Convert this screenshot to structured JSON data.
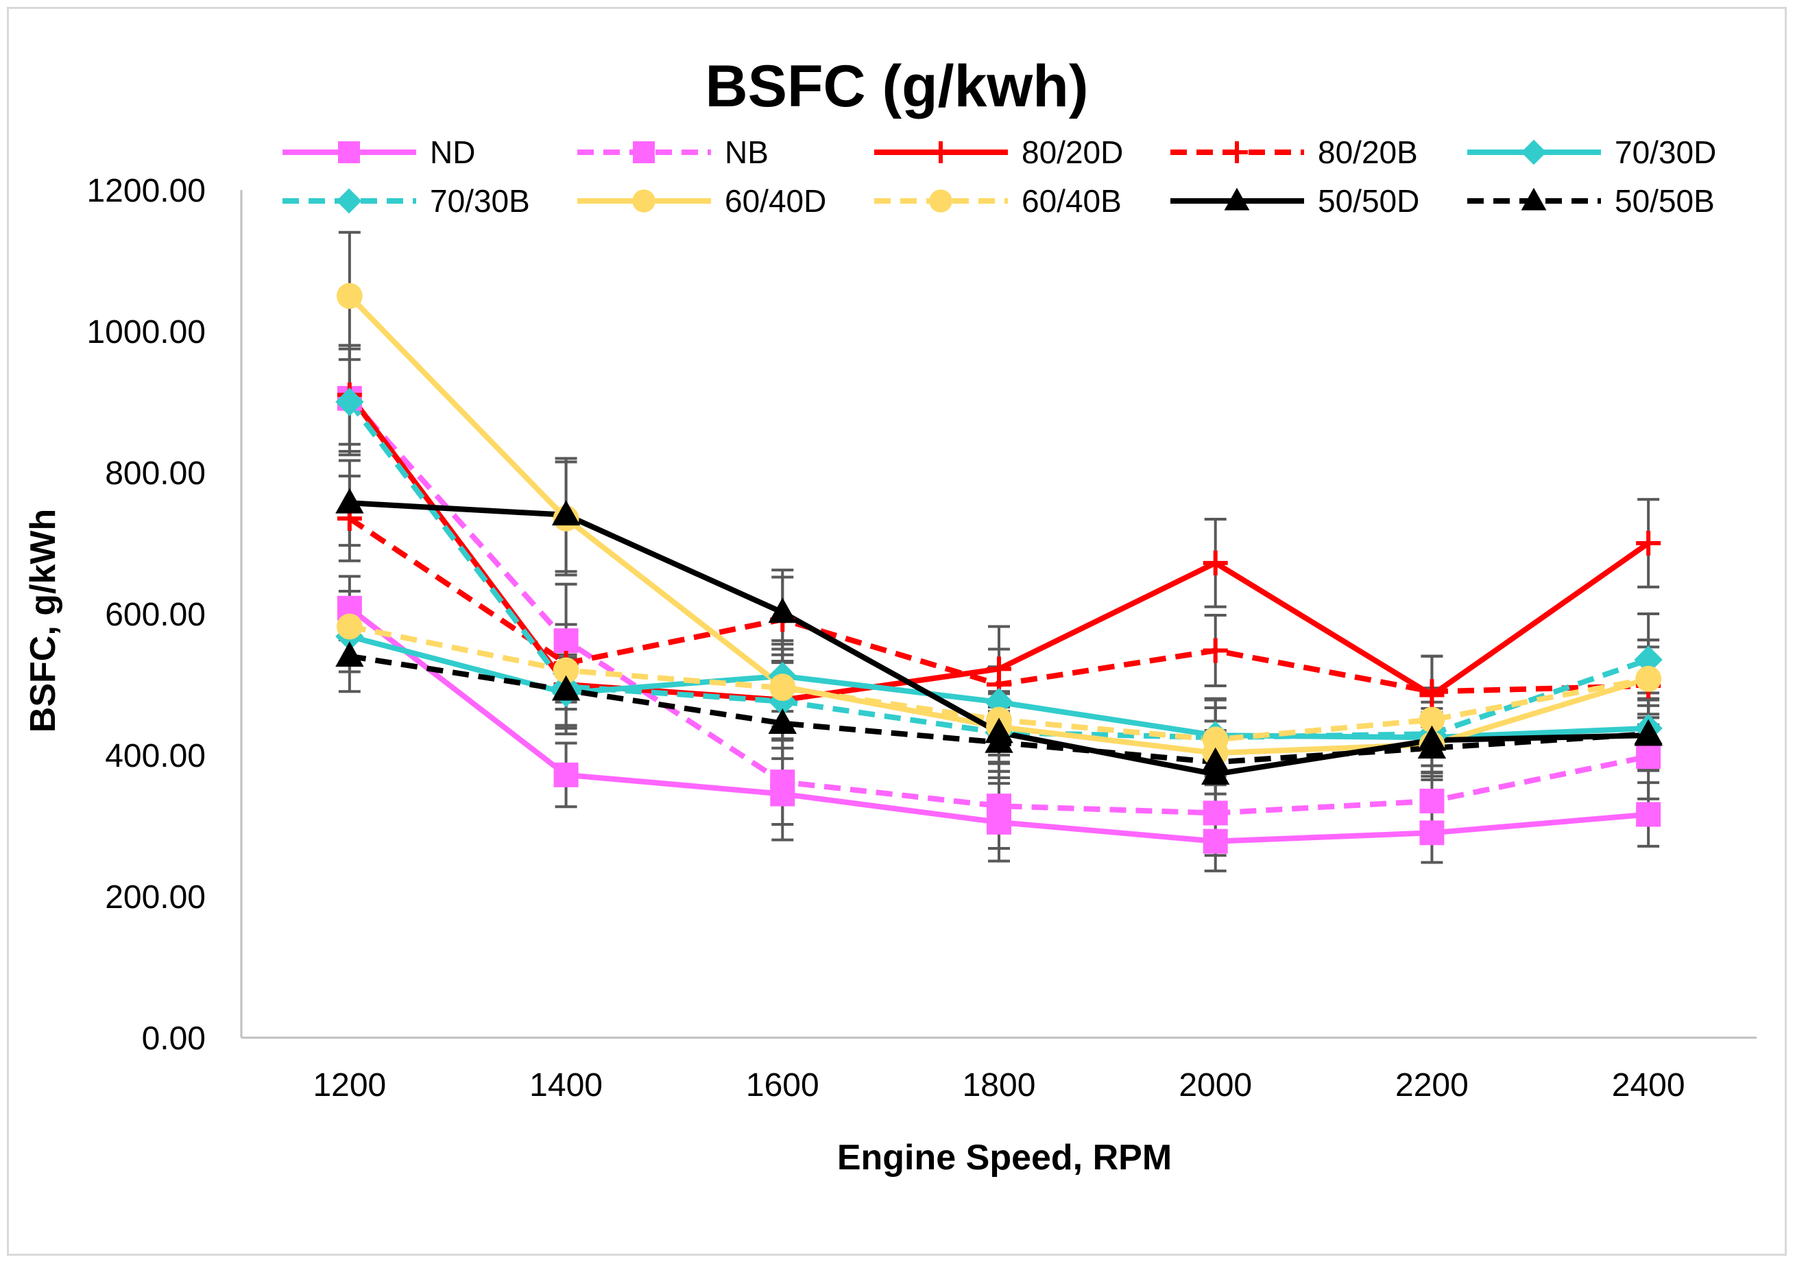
{
  "chart_data": {
    "type": "line",
    "title": "BSFC (g/kwh)",
    "xlabel": "Engine Speed, RPM",
    "ylabel": "BSFC, g/kWh",
    "categories": [
      "1200",
      "1400",
      "1600",
      "1800",
      "2000",
      "2200",
      "2400"
    ],
    "yticks": [
      "0.00",
      "200.00",
      "400.00",
      "600.00",
      "800.00",
      "1000.00",
      "1200.00"
    ],
    "ylim": [
      0,
      1200
    ],
    "legend_position": "top",
    "series": [
      {
        "name": "ND",
        "color": "#ff66ff",
        "dash": "solid",
        "marker": "square",
        "values": [
          608,
          372,
          345,
          305,
          278,
          290,
          316
        ],
        "errors": [
          45,
          45,
          65,
          55,
          42,
          42,
          45
        ]
      },
      {
        "name": "NB",
        "color": "#ff66ff",
        "dash": "dashed",
        "marker": "square",
        "values": [
          905,
          562,
          362,
          328,
          318,
          335,
          398
        ],
        "errors": [
          75,
          80,
          60,
          60,
          60,
          50,
          60
        ]
      },
      {
        "name": "80/20D",
        "color": "#ff0000",
        "dash": "solid",
        "marker": "plus",
        "values": [
          910,
          500,
          478,
          522,
          672,
          485,
          700
        ],
        "errors": [
          70,
          70,
          55,
          60,
          62,
          55,
          62
        ]
      },
      {
        "name": "80/20B",
        "color": "#ff0000",
        "dash": "dashed",
        "marker": "plus",
        "values": [
          735,
          530,
          592,
          500,
          548,
          490,
          498
        ],
        "errors": [
          60,
          55,
          60,
          50,
          50,
          50,
          55
        ]
      },
      {
        "name": "70/30D",
        "color": "#33cccc",
        "dash": "solid",
        "marker": "diamond",
        "values": [
          568,
          488,
          512,
          475,
          428,
          425,
          438
        ],
        "errors": [
          50,
          50,
          50,
          50,
          50,
          50,
          50
        ]
      },
      {
        "name": "70/30B",
        "color": "#33cccc",
        "dash": "dashed",
        "marker": "diamond",
        "values": [
          900,
          497,
          476,
          432,
          425,
          430,
          535
        ],
        "errors": [
          75,
          55,
          55,
          55,
          55,
          55,
          65
        ]
      },
      {
        "name": "60/40D",
        "color": "#ffd966",
        "dash": "solid",
        "marker": "circle",
        "values": [
          1050,
          735,
          497,
          440,
          403,
          415,
          508
        ],
        "errors": [
          90,
          80,
          60,
          50,
          45,
          45,
          55
        ]
      },
      {
        "name": "60/40B",
        "color": "#ffd966",
        "dash": "dashed",
        "marker": "circle",
        "values": [
          582,
          520,
          495,
          450,
          422,
          450,
          508
        ],
        "errors": [
          50,
          55,
          55,
          50,
          45,
          45,
          55
        ]
      },
      {
        "name": "50/50D",
        "color": "#000000",
        "dash": "solid",
        "marker": "triangle",
        "values": [
          757,
          740,
          602,
          432,
          373,
          421,
          428
        ],
        "errors": [
          60,
          80,
          60,
          55,
          45,
          45,
          50
        ]
      },
      {
        "name": "50/50B",
        "color": "#000000",
        "dash": "dashed",
        "marker": "triangle",
        "values": [
          540,
          492,
          445,
          418,
          390,
          410,
          430
        ],
        "errors": [
          50,
          50,
          50,
          50,
          45,
          45,
          50
        ]
      }
    ]
  }
}
